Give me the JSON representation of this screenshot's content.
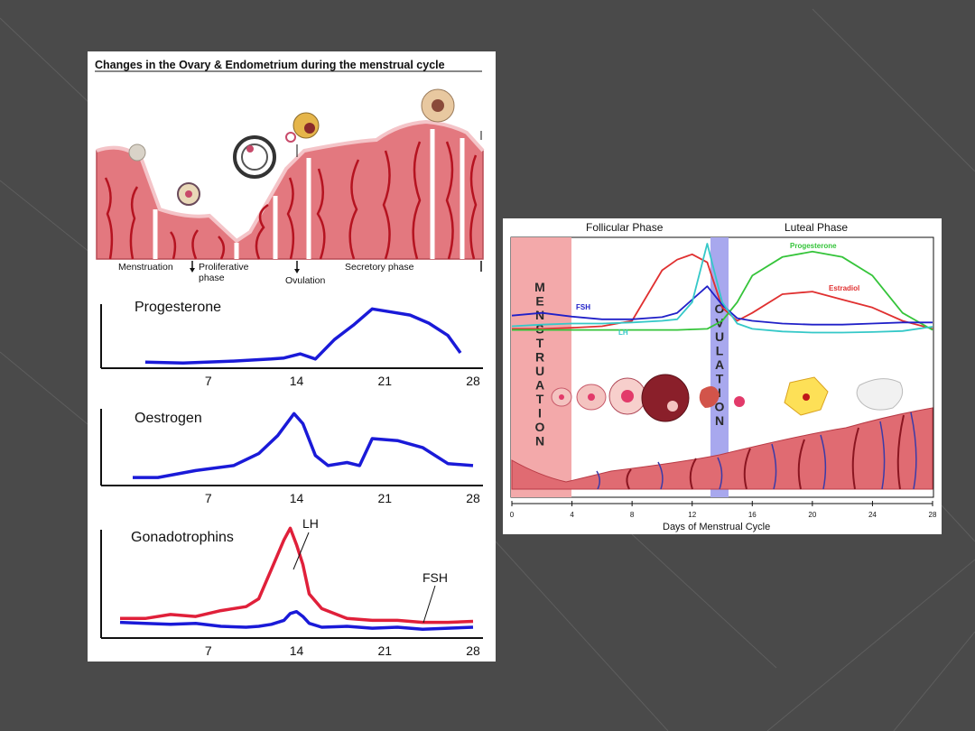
{
  "slide": {
    "background": "#4a4a4a"
  },
  "left_diagram": {
    "title": "Changes in the Ovary & Endometrium during the menstrual cycle",
    "phases": {
      "menstruation": "Menstruation",
      "proliferative_1": "Proliferative",
      "proliferative_2": "phase",
      "ovulation": "Ovulation",
      "secretory": "Secretory phase"
    },
    "charts": [
      {
        "title": "Progesterone",
        "type": "line",
        "x": [
          2,
          5,
          9,
          12,
          13,
          14.3,
          15.5,
          17,
          18.5,
          20,
          21.5,
          23,
          24.5,
          26,
          27
        ],
        "series": [
          {
            "name": "Progesterone",
            "color": "#1a1ad8",
            "values": [
              6,
              5,
              7,
              9,
              10,
              14,
              9,
              28,
              42,
              58,
              55,
              52,
              44,
              32,
              15
            ]
          }
        ],
        "xticks": [
          "7",
          "14",
          "21",
          "28"
        ]
      },
      {
        "title": "Oestrogen",
        "type": "line",
        "x": [
          1,
          3,
          6,
          9,
          11,
          12.5,
          13.8,
          14.5,
          15.5,
          16.5,
          18,
          19,
          20,
          22,
          24,
          26,
          28
        ],
        "series": [
          {
            "name": "Oestrogen",
            "color": "#1a1ad8",
            "values": [
              8,
              8,
              15,
              20,
              32,
              50,
              72,
              62,
              30,
              20,
              23,
              20,
              47,
              45,
              38,
              22,
              20
            ]
          }
        ],
        "xticks": [
          "7",
          "14",
          "21",
          "28"
        ]
      },
      {
        "title": "Gonadotrophins",
        "type": "line",
        "x": [
          0,
          2,
          4,
          6,
          8,
          10,
          11,
          12,
          13,
          13.5,
          14,
          14.5,
          15,
          16,
          18,
          20,
          22,
          24,
          26,
          28
        ],
        "series": [
          {
            "name": "LH",
            "color": "#e0203a",
            "values": [
              20,
              20,
              24,
              22,
              28,
              32,
              40,
              70,
              100,
              112,
              95,
              75,
              45,
              30,
              20,
              18,
              18,
              16,
              16,
              17
            ]
          },
          {
            "name": "FSH",
            "color": "#1a1ad8",
            "values": [
              16,
              15,
              14,
              15,
              12,
              11,
              12,
              14,
              18,
              25,
              27,
              22,
              15,
              11,
              12,
              10,
              11,
              9,
              10,
              11
            ]
          }
        ],
        "labels": {
          "lh": "LH",
          "fsh": "FSH"
        },
        "xticks": [
          "7",
          "14",
          "21",
          "28"
        ]
      }
    ]
  },
  "right_diagram": {
    "follicular_label": "Follicular Phase",
    "luteal_label": "Luteal Phase",
    "menstruation_letters": [
      "M",
      "E",
      "N",
      "S",
      "T",
      "R",
      "U",
      "A",
      "T",
      "I",
      "O",
      "N"
    ],
    "ovulation_letters": [
      "O",
      "V",
      "U",
      "L",
      "A",
      "T",
      "I",
      "O",
      "N"
    ],
    "x_axis_label": "Days of Menstrual Cycle",
    "chart_data": {
      "type": "line",
      "x": [
        0,
        2,
        4,
        6,
        8,
        10,
        11,
        12,
        13,
        14,
        15,
        16,
        18,
        20,
        22,
        24,
        26,
        28
      ],
      "series": [
        {
          "name": "Estradiol",
          "color": "#e03030",
          "values": [
            40,
            40,
            42,
            45,
            55,
            150,
            170,
            180,
            165,
            80,
            55,
            70,
            105,
            110,
            95,
            80,
            55,
            40
          ]
        },
        {
          "name": "Progesterone",
          "color": "#35c43a",
          "values": [
            38,
            38,
            38,
            38,
            38,
            38,
            38,
            39,
            40,
            55,
            90,
            140,
            175,
            185,
            175,
            140,
            70,
            38
          ]
        },
        {
          "name": "FSH",
          "color": "#2020c8",
          "values": [
            65,
            70,
            63,
            58,
            58,
            62,
            70,
            95,
            120,
            85,
            60,
            55,
            50,
            48,
            48,
            50,
            52,
            52
          ]
        },
        {
          "name": "LH",
          "color": "#35c8c8",
          "values": [
            45,
            48,
            50,
            50,
            52,
            55,
            58,
            90,
            200,
            90,
            50,
            40,
            35,
            33,
            33,
            34,
            36,
            44
          ]
        }
      ],
      "series_labels": {
        "estradiol": "Estradiol",
        "progesterone": "Progesterone",
        "fsh": "FSH",
        "lh": "LH"
      },
      "xticks": [
        "0",
        "4",
        "8",
        "12",
        "16",
        "20",
        "24",
        "28"
      ],
      "xlim": [
        0,
        28
      ]
    }
  }
}
